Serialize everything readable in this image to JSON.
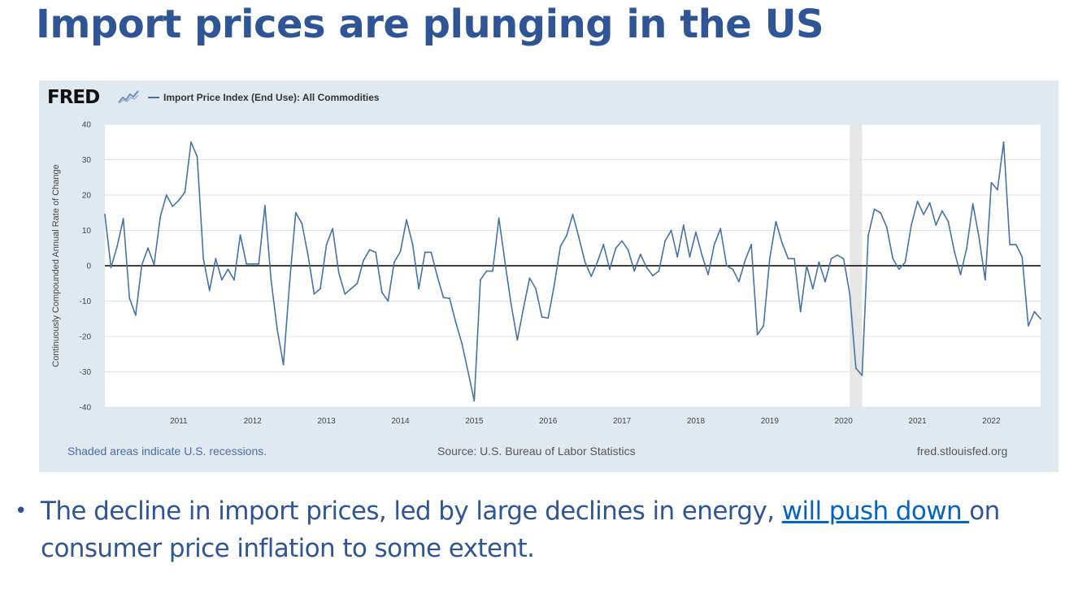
{
  "slide": {
    "title": "Import prices are plunging in the US",
    "bullet_symbol": "•",
    "bullet_text_before": "The decline in import prices, led by large declines in energy, ",
    "bullet_link_text": "will push down ",
    "bullet_text_after": "on consumer price inflation to some extent."
  },
  "fred": {
    "logo_text": "FRED",
    "recession_note": "Shaded areas indicate U.S. recessions.",
    "source_note": "Source: U.S. Bureau of Labor Statistics",
    "url_note": "fred.stlouisfed.org"
  },
  "colors": {
    "title": "#2f5597",
    "series_line": "#4572a7",
    "recession_shade": "#e6e6e6",
    "panel_background": "#e1e9f0",
    "link": "#0563c1"
  },
  "chart_data": {
    "type": "line",
    "title": "",
    "xlabel": "",
    "ylabel": "Continuously Compounded Annual Rate of Change",
    "ylim": [
      -40,
      40
    ],
    "yticks": [
      40,
      30,
      20,
      10,
      0,
      -10,
      -20,
      -30,
      -40
    ],
    "xticks": [
      "2011",
      "2012",
      "2013",
      "2014",
      "2015",
      "2016",
      "2017",
      "2018",
      "2019",
      "2020",
      "2021",
      "2022"
    ],
    "x_range": [
      "2010-01",
      "2022-09"
    ],
    "grid": true,
    "zero_line": true,
    "legend_position": "top-left",
    "recessions": [
      {
        "start": "2020-02",
        "end": "2020-04"
      }
    ],
    "series": [
      {
        "name": "Import Price Index (End Use): All Commodities",
        "x": [
          "2010-01",
          "2010-02",
          "2010-03",
          "2010-04",
          "2010-05",
          "2010-06",
          "2010-07",
          "2010-08",
          "2010-09",
          "2010-10",
          "2010-11",
          "2010-12",
          "2011-01",
          "2011-02",
          "2011-03",
          "2011-04",
          "2011-05",
          "2011-06",
          "2011-07",
          "2011-08",
          "2011-09",
          "2011-10",
          "2011-11",
          "2011-12",
          "2012-01",
          "2012-02",
          "2012-03",
          "2012-04",
          "2012-05",
          "2012-06",
          "2012-07",
          "2012-08",
          "2012-09",
          "2012-10",
          "2012-11",
          "2012-12",
          "2013-01",
          "2013-02",
          "2013-03",
          "2013-04",
          "2013-05",
          "2013-06",
          "2013-07",
          "2013-08",
          "2013-09",
          "2013-10",
          "2013-11",
          "2013-12",
          "2014-01",
          "2014-02",
          "2014-03",
          "2014-04",
          "2014-05",
          "2014-06",
          "2014-07",
          "2014-08",
          "2014-09",
          "2014-10",
          "2014-11",
          "2014-12",
          "2015-01",
          "2015-02",
          "2015-03",
          "2015-04",
          "2015-05",
          "2015-06",
          "2015-07",
          "2015-08",
          "2015-09",
          "2015-10",
          "2015-11",
          "2015-12",
          "2016-01",
          "2016-02",
          "2016-03",
          "2016-04",
          "2016-05",
          "2016-06",
          "2016-07",
          "2016-08",
          "2016-09",
          "2016-10",
          "2016-11",
          "2016-12",
          "2017-01",
          "2017-02",
          "2017-03",
          "2017-04",
          "2017-05",
          "2017-06",
          "2017-07",
          "2017-08",
          "2017-09",
          "2017-10",
          "2017-11",
          "2017-12",
          "2018-01",
          "2018-02",
          "2018-03",
          "2018-04",
          "2018-05",
          "2018-06",
          "2018-07",
          "2018-08",
          "2018-09",
          "2018-10",
          "2018-11",
          "2018-12",
          "2019-01",
          "2019-02",
          "2019-03",
          "2019-04",
          "2019-05",
          "2019-06",
          "2019-07",
          "2019-08",
          "2019-09",
          "2019-10",
          "2019-11",
          "2019-12",
          "2020-01",
          "2020-02",
          "2020-03",
          "2020-04",
          "2020-05",
          "2020-06",
          "2020-07",
          "2020-08",
          "2020-09",
          "2020-10",
          "2020-11",
          "2020-12",
          "2021-01",
          "2021-02",
          "2021-03",
          "2021-04",
          "2021-05",
          "2021-06",
          "2021-07",
          "2021-08",
          "2021-09",
          "2021-10",
          "2021-11",
          "2021-12",
          "2022-01",
          "2022-02",
          "2022-03",
          "2022-04",
          "2022-05",
          "2022-06",
          "2022-07",
          "2022-08",
          "2022-09"
        ],
        "values": [
          14.5,
          -0.5,
          5.5,
          13.3,
          -9.2,
          -14.0,
          0.2,
          5.0,
          0.3,
          13.8,
          20.0,
          16.8,
          18.5,
          20.8,
          35.0,
          30.8,
          2.0,
          -7.0,
          2.0,
          -4.0,
          -1.0,
          -4.0,
          8.7,
          0.5,
          0.5,
          0.5,
          17.0,
          -4.0,
          -18.0,
          -28.0,
          -5.0,
          15.0,
          12.0,
          3.0,
          -8.0,
          -6.5,
          6.0,
          10.5,
          -2.0,
          -8.0,
          -6.5,
          -5.0,
          1.5,
          4.5,
          3.8,
          -7.5,
          -10.0,
          1.0,
          4.0,
          13.0,
          6.0,
          -6.5,
          3.8,
          3.8,
          -3.0,
          -9.0,
          -9.2,
          -16.0,
          -22.0,
          -30.0,
          -38.2,
          -4.0,
          -1.5,
          -1.5,
          13.5,
          1.0,
          -11.0,
          -21.0,
          -12.0,
          -3.5,
          -6.5,
          -14.5,
          -14.8,
          -5.5,
          5.5,
          8.5,
          14.5,
          8.0,
          1.0,
          -3.0,
          1.0,
          6.0,
          -1.0,
          5.0,
          7.0,
          4.5,
          -1.5,
          3.2,
          -0.5,
          -2.8,
          -1.5,
          7.0,
          10.0,
          2.5,
          11.5,
          2.5,
          9.5,
          3.0,
          -2.5,
          6.0,
          10.5,
          0.0,
          -1.0,
          -4.5,
          1.5,
          6.0,
          -19.5,
          -17.0,
          2.0,
          12.5,
          6.5,
          2.0,
          2.0,
          -13.0,
          0.0,
          -6.5,
          1.0,
          -4.5,
          2.0,
          3.0,
          2.0,
          -8.0,
          -29.0,
          -31.0,
          8.5,
          16.0,
          15.0,
          11.0,
          2.0,
          -1.0,
          1.0,
          11.5,
          18.2,
          14.5,
          17.8,
          11.5,
          15.5,
          12.5,
          4.0,
          -2.5,
          5.0,
          17.5,
          8.0,
          -4.0,
          23.5,
          21.5,
          35.0,
          6.0,
          6.0,
          2.5,
          -17.0,
          -13.0,
          -15.0
        ]
      }
    ]
  }
}
